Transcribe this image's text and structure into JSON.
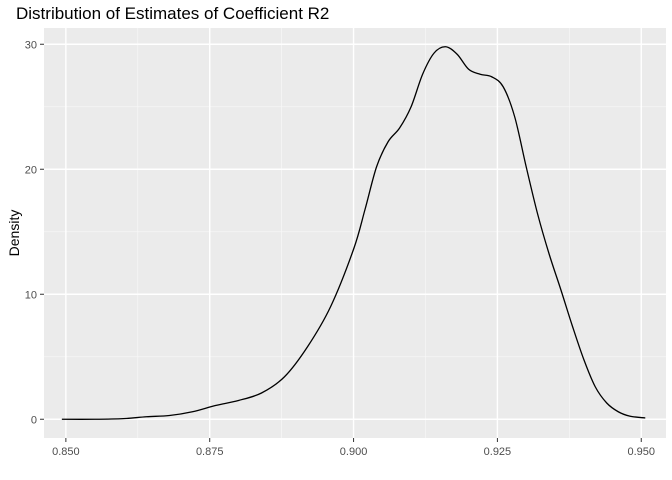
{
  "chart_data": {
    "type": "line",
    "title": "Distribution of Estimates of Coefficient R2",
    "xlabel": "",
    "ylabel": "Density",
    "xlim": [
      0.8462,
      0.9543
    ],
    "ylim": [
      -1.5,
      31.3
    ],
    "x_ticks": [
      {
        "value": 0.85,
        "label": "0.850"
      },
      {
        "value": 0.875,
        "label": "0.875"
      },
      {
        "value": 0.9,
        "label": "0.900"
      },
      {
        "value": 0.925,
        "label": "0.925"
      },
      {
        "value": 0.95,
        "label": "0.950"
      }
    ],
    "y_ticks": [
      {
        "value": 0,
        "label": "0"
      },
      {
        "value": 10,
        "label": "10"
      },
      {
        "value": 20,
        "label": "20"
      },
      {
        "value": 30,
        "label": "30"
      }
    ],
    "grid": true,
    "legend": "none",
    "series": [
      {
        "color": "#000000",
        "x": [
          0.8493,
          0.855,
          0.86,
          0.864,
          0.868,
          0.872,
          0.876,
          0.88,
          0.884,
          0.888,
          0.892,
          0.896,
          0.9,
          0.902,
          0.904,
          0.906,
          0.908,
          0.91,
          0.912,
          0.914,
          0.916,
          0.918,
          0.92,
          0.922,
          0.924,
          0.926,
          0.928,
          0.93,
          0.932,
          0.934,
          0.936,
          0.938,
          0.94,
          0.942,
          0.944,
          0.946,
          0.948,
          0.9507
        ],
        "values": [
          0.0,
          0.0,
          0.05,
          0.2,
          0.3,
          0.6,
          1.1,
          1.5,
          2.1,
          3.4,
          5.8,
          9.0,
          13.6,
          16.8,
          20.2,
          22.2,
          23.3,
          25.0,
          27.6,
          29.3,
          29.8,
          29.2,
          28.0,
          27.6,
          27.4,
          26.6,
          24.2,
          20.2,
          16.4,
          13.2,
          10.4,
          7.5,
          4.8,
          2.6,
          1.3,
          0.6,
          0.25,
          0.1
        ]
      }
    ]
  }
}
